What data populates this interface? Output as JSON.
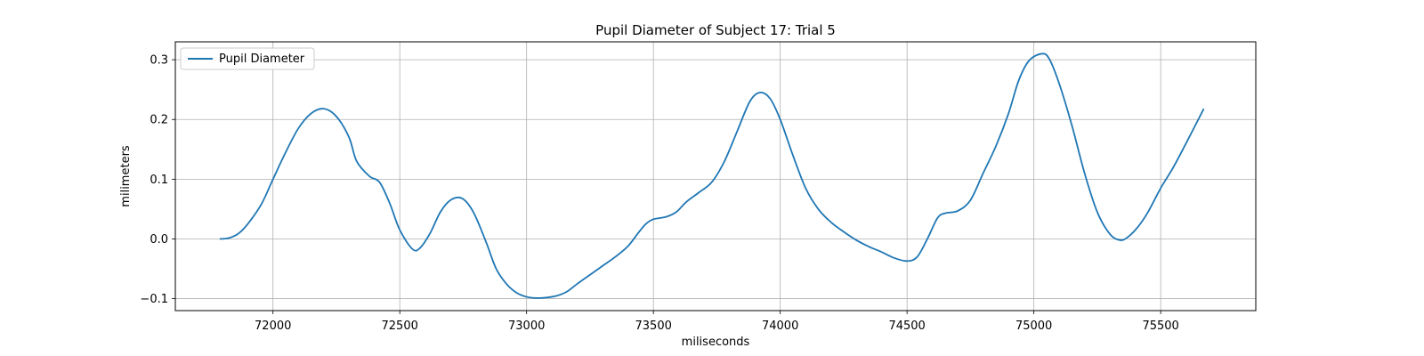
{
  "chart_data": {
    "type": "line",
    "title": "Pupil Diameter of Subject 17: Trial 5",
    "xlabel": "miliseconds",
    "ylabel": "milimeters",
    "xlim": [
      71615,
      75875
    ],
    "ylim": [
      -0.12,
      0.33
    ],
    "xticks": [
      72000,
      72500,
      73000,
      73500,
      74000,
      74500,
      75000,
      75500
    ],
    "yticks": [
      -0.1,
      0.0,
      0.1,
      0.2,
      0.3
    ],
    "xtick_labels": [
      "72000",
      "72500",
      "73000",
      "73500",
      "74000",
      "74500",
      "75000",
      "75500"
    ],
    "ytick_labels": [
      "−0.1",
      "0.0",
      "0.1",
      "0.2",
      "0.3"
    ],
    "grid": true,
    "legend_position": "top-left",
    "series": [
      {
        "name": "Pupil Diameter",
        "color": "#1f77b4",
        "x": [
          71790,
          71830,
          71880,
          71950,
          72000,
          72050,
          72100,
          72150,
          72200,
          72250,
          72300,
          72330,
          72380,
          72420,
          72460,
          72500,
          72550,
          72580,
          72620,
          72660,
          72700,
          72745,
          72790,
          72840,
          72880,
          72920,
          72960,
          73000,
          73040,
          73080,
          73120,
          73160,
          73200,
          73250,
          73300,
          73350,
          73400,
          73440,
          73470,
          73500,
          73550,
          73590,
          73630,
          73680,
          73730,
          73780,
          73830,
          73880,
          73920,
          73960,
          74000,
          74050,
          74100,
          74150,
          74200,
          74250,
          74300,
          74350,
          74400,
          74450,
          74500,
          74540,
          74580,
          74620,
          74650,
          74700,
          74750,
          74800,
          74850,
          74900,
          74940,
          74980,
          75030,
          75060,
          75100,
          75150,
          75200,
          75250,
          75300,
          75340,
          75370,
          75410,
          75450,
          75500,
          75550,
          75600,
          75670
        ],
        "y": [
          0.0,
          0.002,
          0.015,
          0.055,
          0.1,
          0.145,
          0.185,
          0.21,
          0.218,
          0.205,
          0.17,
          0.13,
          0.105,
          0.095,
          0.06,
          0.015,
          -0.017,
          -0.015,
          0.01,
          0.045,
          0.065,
          0.068,
          0.045,
          -0.005,
          -0.05,
          -0.075,
          -0.09,
          -0.097,
          -0.099,
          -0.098,
          -0.095,
          -0.088,
          -0.075,
          -0.06,
          -0.045,
          -0.03,
          -0.012,
          0.01,
          0.025,
          0.033,
          0.037,
          0.045,
          0.062,
          0.078,
          0.095,
          0.13,
          0.18,
          0.23,
          0.245,
          0.235,
          0.2,
          0.14,
          0.085,
          0.05,
          0.028,
          0.012,
          -0.002,
          -0.013,
          -0.022,
          -0.032,
          -0.037,
          -0.03,
          0.0,
          0.035,
          0.043,
          0.047,
          0.065,
          0.11,
          0.155,
          0.21,
          0.265,
          0.298,
          0.31,
          0.302,
          0.26,
          0.19,
          0.11,
          0.045,
          0.008,
          -0.002,
          0.003,
          0.02,
          0.045,
          0.085,
          0.12,
          0.16,
          0.218
        ]
      }
    ]
  }
}
